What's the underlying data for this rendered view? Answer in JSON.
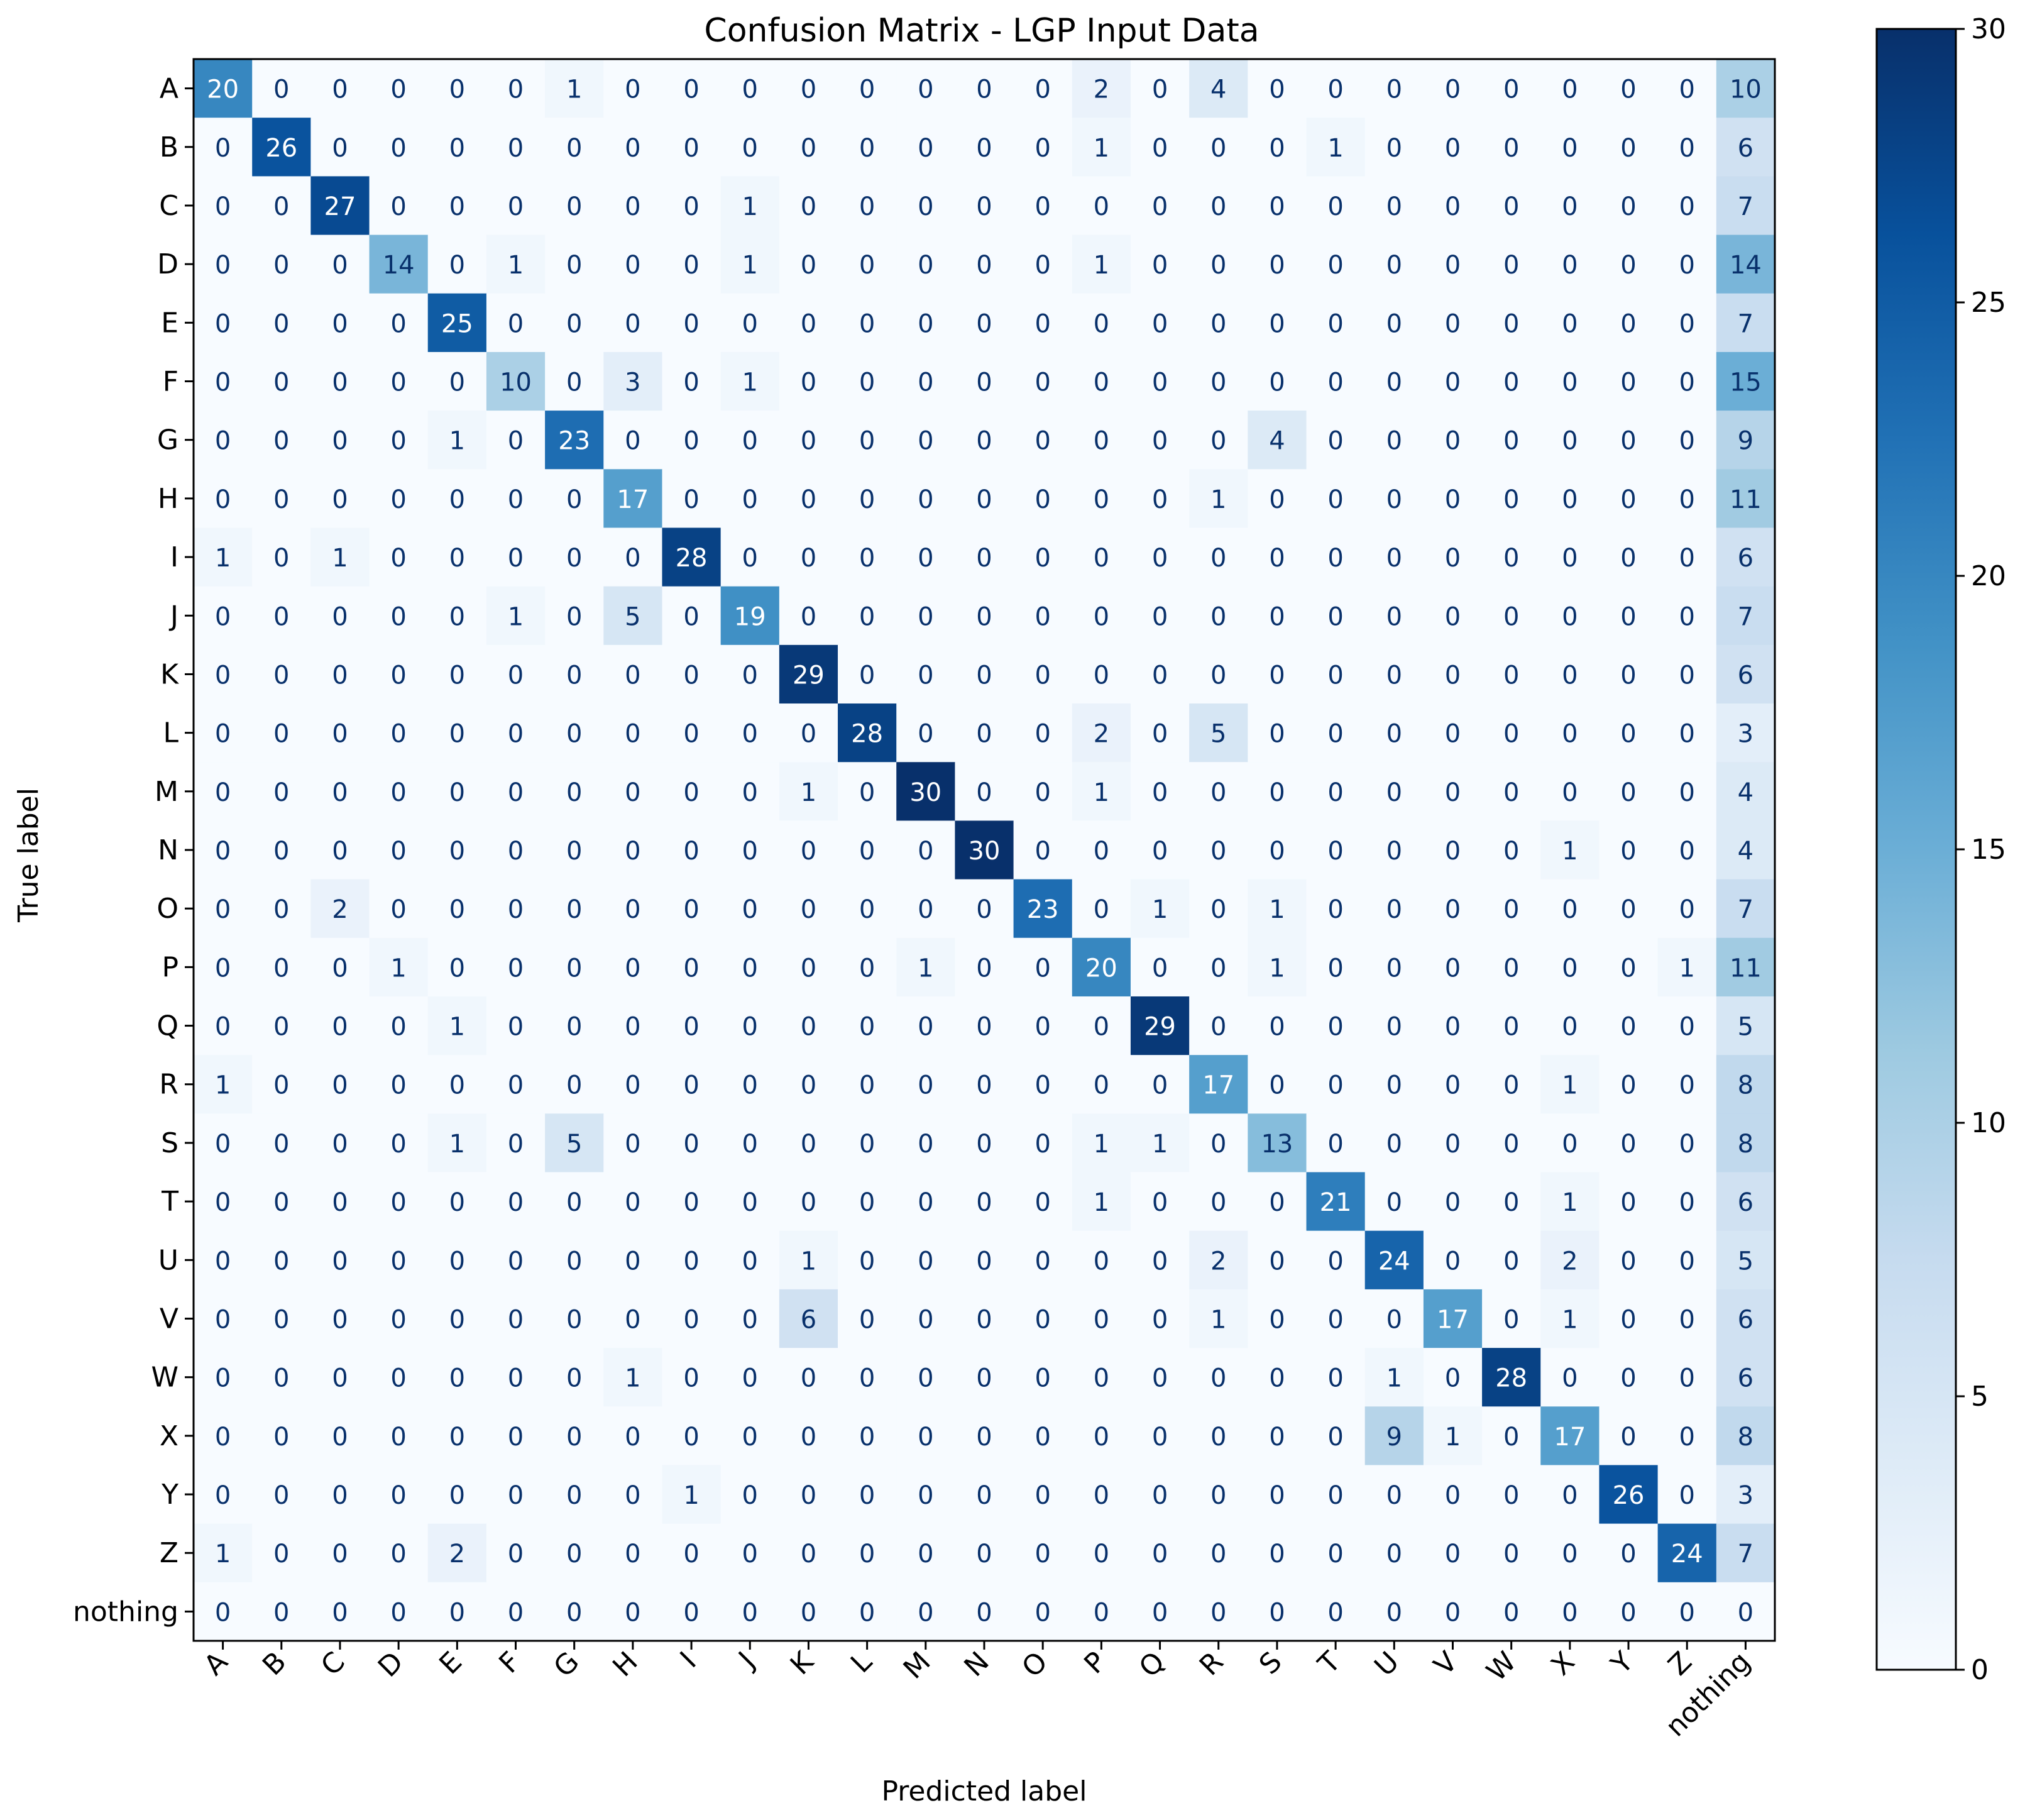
{
  "chart_data": {
    "type": "heatmap",
    "title": "Confusion Matrix - LGP Input Data",
    "xlabel": "Predicted label",
    "ylabel": "True label",
    "labels": [
      "A",
      "B",
      "C",
      "D",
      "E",
      "F",
      "G",
      "H",
      "I",
      "J",
      "K",
      "L",
      "M",
      "N",
      "O",
      "P",
      "Q",
      "R",
      "S",
      "T",
      "U",
      "V",
      "W",
      "X",
      "Y",
      "Z",
      "nothing"
    ],
    "matrix": [
      [
        20,
        0,
        0,
        0,
        0,
        0,
        1,
        0,
        0,
        0,
        0,
        0,
        0,
        0,
        0,
        2,
        0,
        4,
        0,
        0,
        0,
        0,
        0,
        0,
        0,
        0,
        10
      ],
      [
        0,
        26,
        0,
        0,
        0,
        0,
        0,
        0,
        0,
        0,
        0,
        0,
        0,
        0,
        0,
        1,
        0,
        0,
        0,
        1,
        0,
        0,
        0,
        0,
        0,
        0,
        6
      ],
      [
        0,
        0,
        27,
        0,
        0,
        0,
        0,
        0,
        0,
        1,
        0,
        0,
        0,
        0,
        0,
        0,
        0,
        0,
        0,
        0,
        0,
        0,
        0,
        0,
        0,
        0,
        7
      ],
      [
        0,
        0,
        0,
        14,
        0,
        1,
        0,
        0,
        0,
        1,
        0,
        0,
        0,
        0,
        0,
        1,
        0,
        0,
        0,
        0,
        0,
        0,
        0,
        0,
        0,
        0,
        14
      ],
      [
        0,
        0,
        0,
        0,
        25,
        0,
        0,
        0,
        0,
        0,
        0,
        0,
        0,
        0,
        0,
        0,
        0,
        0,
        0,
        0,
        0,
        0,
        0,
        0,
        0,
        0,
        7
      ],
      [
        0,
        0,
        0,
        0,
        0,
        10,
        0,
        3,
        0,
        1,
        0,
        0,
        0,
        0,
        0,
        0,
        0,
        0,
        0,
        0,
        0,
        0,
        0,
        0,
        0,
        0,
        15
      ],
      [
        0,
        0,
        0,
        0,
        1,
        0,
        23,
        0,
        0,
        0,
        0,
        0,
        0,
        0,
        0,
        0,
        0,
        0,
        4,
        0,
        0,
        0,
        0,
        0,
        0,
        0,
        9
      ],
      [
        0,
        0,
        0,
        0,
        0,
        0,
        0,
        17,
        0,
        0,
        0,
        0,
        0,
        0,
        0,
        0,
        0,
        1,
        0,
        0,
        0,
        0,
        0,
        0,
        0,
        0,
        11
      ],
      [
        1,
        0,
        1,
        0,
        0,
        0,
        0,
        0,
        28,
        0,
        0,
        0,
        0,
        0,
        0,
        0,
        0,
        0,
        0,
        0,
        0,
        0,
        0,
        0,
        0,
        0,
        6
      ],
      [
        0,
        0,
        0,
        0,
        0,
        1,
        0,
        5,
        0,
        19,
        0,
        0,
        0,
        0,
        0,
        0,
        0,
        0,
        0,
        0,
        0,
        0,
        0,
        0,
        0,
        0,
        7
      ],
      [
        0,
        0,
        0,
        0,
        0,
        0,
        0,
        0,
        0,
        0,
        29,
        0,
        0,
        0,
        0,
        0,
        0,
        0,
        0,
        0,
        0,
        0,
        0,
        0,
        0,
        0,
        6
      ],
      [
        0,
        0,
        0,
        0,
        0,
        0,
        0,
        0,
        0,
        0,
        0,
        28,
        0,
        0,
        0,
        2,
        0,
        5,
        0,
        0,
        0,
        0,
        0,
        0,
        0,
        0,
        3
      ],
      [
        0,
        0,
        0,
        0,
        0,
        0,
        0,
        0,
        0,
        0,
        1,
        0,
        30,
        0,
        0,
        1,
        0,
        0,
        0,
        0,
        0,
        0,
        0,
        0,
        0,
        0,
        4
      ],
      [
        0,
        0,
        0,
        0,
        0,
        0,
        0,
        0,
        0,
        0,
        0,
        0,
        0,
        30,
        0,
        0,
        0,
        0,
        0,
        0,
        0,
        0,
        0,
        1,
        0,
        0,
        4
      ],
      [
        0,
        0,
        2,
        0,
        0,
        0,
        0,
        0,
        0,
        0,
        0,
        0,
        0,
        0,
        23,
        0,
        1,
        0,
        1,
        0,
        0,
        0,
        0,
        0,
        0,
        0,
        7
      ],
      [
        0,
        0,
        0,
        1,
        0,
        0,
        0,
        0,
        0,
        0,
        0,
        0,
        1,
        0,
        0,
        20,
        0,
        0,
        1,
        0,
        0,
        0,
        0,
        0,
        0,
        1,
        11
      ],
      [
        0,
        0,
        0,
        0,
        1,
        0,
        0,
        0,
        0,
        0,
        0,
        0,
        0,
        0,
        0,
        0,
        29,
        0,
        0,
        0,
        0,
        0,
        0,
        0,
        0,
        0,
        5
      ],
      [
        1,
        0,
        0,
        0,
        0,
        0,
        0,
        0,
        0,
        0,
        0,
        0,
        0,
        0,
        0,
        0,
        0,
        17,
        0,
        0,
        0,
        0,
        0,
        1,
        0,
        0,
        8
      ],
      [
        0,
        0,
        0,
        0,
        1,
        0,
        5,
        0,
        0,
        0,
        0,
        0,
        0,
        0,
        0,
        1,
        1,
        0,
        13,
        0,
        0,
        0,
        0,
        0,
        0,
        0,
        8
      ],
      [
        0,
        0,
        0,
        0,
        0,
        0,
        0,
        0,
        0,
        0,
        0,
        0,
        0,
        0,
        0,
        1,
        0,
        0,
        0,
        21,
        0,
        0,
        0,
        1,
        0,
        0,
        6
      ],
      [
        0,
        0,
        0,
        0,
        0,
        0,
        0,
        0,
        0,
        0,
        1,
        0,
        0,
        0,
        0,
        0,
        0,
        2,
        0,
        0,
        24,
        0,
        0,
        2,
        0,
        0,
        5
      ],
      [
        0,
        0,
        0,
        0,
        0,
        0,
        0,
        0,
        0,
        0,
        6,
        0,
        0,
        0,
        0,
        0,
        0,
        1,
        0,
        0,
        0,
        17,
        0,
        1,
        0,
        0,
        6
      ],
      [
        0,
        0,
        0,
        0,
        0,
        0,
        0,
        1,
        0,
        0,
        0,
        0,
        0,
        0,
        0,
        0,
        0,
        0,
        0,
        0,
        1,
        0,
        28,
        0,
        0,
        0,
        6
      ],
      [
        0,
        0,
        0,
        0,
        0,
        0,
        0,
        0,
        0,
        0,
        0,
        0,
        0,
        0,
        0,
        0,
        0,
        0,
        0,
        0,
        9,
        1,
        0,
        17,
        0,
        0,
        8
      ],
      [
        0,
        0,
        0,
        0,
        0,
        0,
        0,
        0,
        1,
        0,
        0,
        0,
        0,
        0,
        0,
        0,
        0,
        0,
        0,
        0,
        0,
        0,
        0,
        0,
        26,
        0,
        3
      ],
      [
        1,
        0,
        0,
        0,
        2,
        0,
        0,
        0,
        0,
        0,
        0,
        0,
        0,
        0,
        0,
        0,
        0,
        0,
        0,
        0,
        0,
        0,
        0,
        0,
        0,
        24,
        7
      ],
      [
        0,
        0,
        0,
        0,
        0,
        0,
        0,
        0,
        0,
        0,
        0,
        0,
        0,
        0,
        0,
        0,
        0,
        0,
        0,
        0,
        0,
        0,
        0,
        0,
        0,
        0,
        0
      ]
    ],
    "colormap": "Blues",
    "colorbar": {
      "min": 0,
      "max": 30,
      "ticks": [
        0,
        5,
        10,
        15,
        20,
        25,
        30
      ]
    },
    "grid": false,
    "colors": {
      "light": "#f7fbff",
      "dark": "#08306b",
      "text_dark": "#08306b",
      "text_light": "#ffffff"
    }
  }
}
